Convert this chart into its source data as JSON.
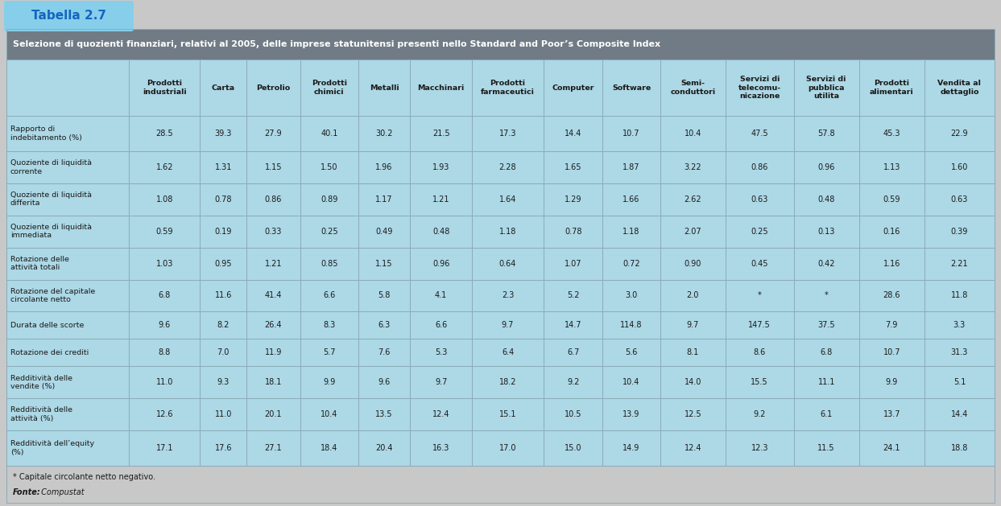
{
  "tab_label": "Tabella 2.7",
  "title": "Selezione di quozienti finanziari, relativi al 2005, delle imprese statunitensi presenti nello Standard and Poor’s Composite Index",
  "col_headers": [
    "Prodotti\nindustriali",
    "Carta",
    "Petrolio",
    "Prodotti\nchimici",
    "Metalli",
    "Macchinari",
    "Prodotti\nfarmaceutici",
    "Computer",
    "Software",
    "Semi-\nconduttori",
    "Servizi di\ntelecomu-\nnicazione",
    "Servizi di\npubblica\nutilita",
    "Prodotti\nalimentari",
    "Vendita al\ndettaglio"
  ],
  "row_headers": [
    "Rapporto di\nindebitamento (%)",
    "Quoziente di liquidità\ncorrente",
    "Quoziente di liquidità\ndifferita",
    "Quoziente di liquidità\nimmediata",
    "Rotazione delle\nattività totali",
    "Rotazione del capitale\ncircolante netto",
    "Durata delle scorte",
    "Rotazione dei crediti",
    "Redditività delle\nvendite (%)",
    "Redditività delle\nattività (%)",
    "Redditività dell’equity\n(%)"
  ],
  "table_data": [
    [
      "28.5",
      "39.3",
      "27.9",
      "40.1",
      "30.2",
      "21.5",
      "17.3",
      "14.4",
      "10.7",
      "10.4",
      "47.5",
      "57.8",
      "45.3",
      "22.9"
    ],
    [
      "1.62",
      "1.31",
      "1.15",
      "1.50",
      "1.96",
      "1.93",
      "2.28",
      "1.65",
      "1.87",
      "3.22",
      "0.86",
      "0.96",
      "1.13",
      "1.60"
    ],
    [
      "1.08",
      "0.78",
      "0.86",
      "0.89",
      "1.17",
      "1.21",
      "1.64",
      "1.29",
      "1.66",
      "2.62",
      "0.63",
      "0.48",
      "0.59",
      "0.63"
    ],
    [
      "0.59",
      "0.19",
      "0.33",
      "0.25",
      "0.49",
      "0.48",
      "1.18",
      "0.78",
      "1.18",
      "2.07",
      "0.25",
      "0.13",
      "0.16",
      "0.39"
    ],
    [
      "1.03",
      "0.95",
      "1.21",
      "0.85",
      "1.15",
      "0.96",
      "0.64",
      "1.07",
      "0.72",
      "0.90",
      "0.45",
      "0.42",
      "1.16",
      "2.21"
    ],
    [
      "6.8",
      "11.6",
      "41.4",
      "6.6",
      "5.8",
      "4.1",
      "2.3",
      "5.2",
      "3.0",
      "2.0",
      "*",
      "*",
      "28.6",
      "11.8"
    ],
    [
      "9.6",
      "8.2",
      "26.4",
      "8.3",
      "6.3",
      "6.6",
      "9.7",
      "14.7",
      "114.8",
      "9.7",
      "147.5",
      "37.5",
      "7.9",
      "3.3"
    ],
    [
      "8.8",
      "7.0",
      "11.9",
      "5.7",
      "7.6",
      "5.3",
      "6.4",
      "6.7",
      "5.6",
      "8.1",
      "8.6",
      "6.8",
      "10.7",
      "31.3"
    ],
    [
      "11.0",
      "9.3",
      "18.1",
      "9.9",
      "9.6",
      "9.7",
      "18.2",
      "9.2",
      "10.4",
      "14.0",
      "15.5",
      "11.1",
      "9.9",
      "5.1"
    ],
    [
      "12.6",
      "11.0",
      "20.1",
      "10.4",
      "13.5",
      "12.4",
      "15.1",
      "10.5",
      "13.9",
      "12.5",
      "9.2",
      "6.1",
      "13.7",
      "14.4"
    ],
    [
      "17.1",
      "17.6",
      "27.1",
      "18.4",
      "20.4",
      "16.3",
      "17.0",
      "15.0",
      "14.9",
      "12.4",
      "12.3",
      "11.5",
      "24.1",
      "18.8"
    ]
  ],
  "footer_note": "* Capitale circolante netto negativo.",
  "footer_source": "Fonte: Compustat",
  "tab_bg": "#87ceeb",
  "tab_text_color": "#1565c0",
  "title_bg": "#707b85",
  "title_text_color": "#ffffff",
  "col_header_bg": "#add8e6",
  "table_bg": "#add8e6",
  "cell_text_color": "#1a1a1a",
  "footer_bg": "#c8c8c8",
  "outer_bg": "#c8c8c8",
  "grid_color": "#8aabb8",
  "border_color": "#8aabb8"
}
